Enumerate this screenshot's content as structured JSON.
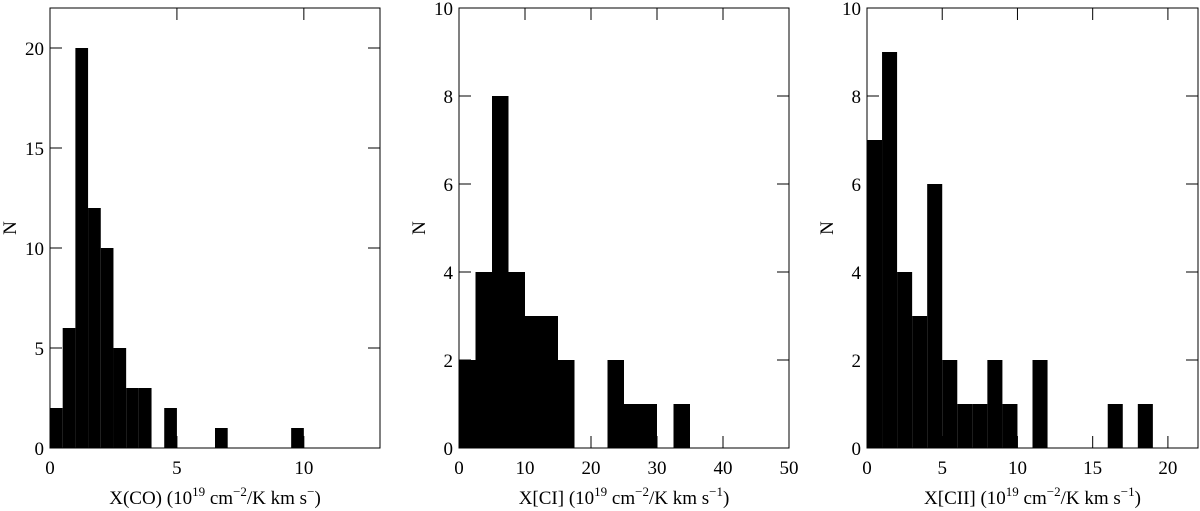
{
  "chart_data": [
    {
      "type": "histogram",
      "color": "#000000",
      "ylabel": "N",
      "xlabel": [
        "X(CO) (10",
        "19",
        " cm",
        "−2",
        "/K km s",
        "−",
        ")"
      ],
      "bins": [
        0,
        0.5,
        1,
        1.5,
        2,
        2.5,
        3,
        3.5,
        4,
        4.5,
        5,
        5.5,
        6,
        6.5,
        7,
        7.5,
        8,
        8.5,
        9,
        9.5,
        10
      ],
      "counts": [
        2,
        6,
        20,
        12,
        10,
        5,
        3,
        3,
        0,
        2,
        0,
        0,
        0,
        1,
        0,
        0,
        0,
        0,
        0,
        1
      ],
      "xlim": [
        0,
        13
      ],
      "ylim": [
        0,
        22
      ],
      "xticks": [
        0,
        5,
        10
      ],
      "yticks": [
        0,
        5,
        10,
        15,
        20
      ]
    },
    {
      "type": "histogram",
      "color": "#000000",
      "ylabel": "N",
      "xlabel": [
        "X[CI] (10",
        "19",
        " cm",
        "−2",
        "/K km s",
        "−1",
        ")"
      ],
      "bins": [
        0,
        2.5,
        5,
        7.5,
        10,
        12.5,
        15,
        17.5,
        20,
        22.5,
        25,
        27.5,
        30,
        32.5,
        35
      ],
      "counts": [
        2,
        4,
        8,
        4,
        3,
        3,
        2,
        0,
        0,
        2,
        1,
        1,
        0,
        1
      ],
      "xlim": [
        0,
        50
      ],
      "ylim": [
        0,
        10
      ],
      "xticks": [
        0,
        10,
        20,
        30,
        40,
        50
      ],
      "yticks": [
        0,
        2,
        4,
        6,
        8,
        10
      ]
    },
    {
      "type": "histogram",
      "color": "#000000",
      "ylabel": "N",
      "xlabel": [
        "X[CII] (10",
        "19",
        " cm",
        "−2",
        "/K km s",
        "−1",
        ")"
      ],
      "bins": [
        0,
        1,
        2,
        3,
        4,
        5,
        6,
        7,
        8,
        9,
        10,
        11,
        12,
        13,
        14,
        15,
        16,
        17,
        18,
        19
      ],
      "counts": [
        7,
        9,
        4,
        3,
        6,
        2,
        1,
        1,
        2,
        1,
        0,
        2,
        0,
        0,
        0,
        0,
        1,
        0,
        1
      ],
      "xlim": [
        0,
        22
      ],
      "ylim": [
        0,
        10
      ],
      "xticks": [
        0,
        5,
        10,
        15,
        20
      ],
      "yticks": [
        0,
        2,
        4,
        6,
        8,
        10
      ]
    }
  ]
}
